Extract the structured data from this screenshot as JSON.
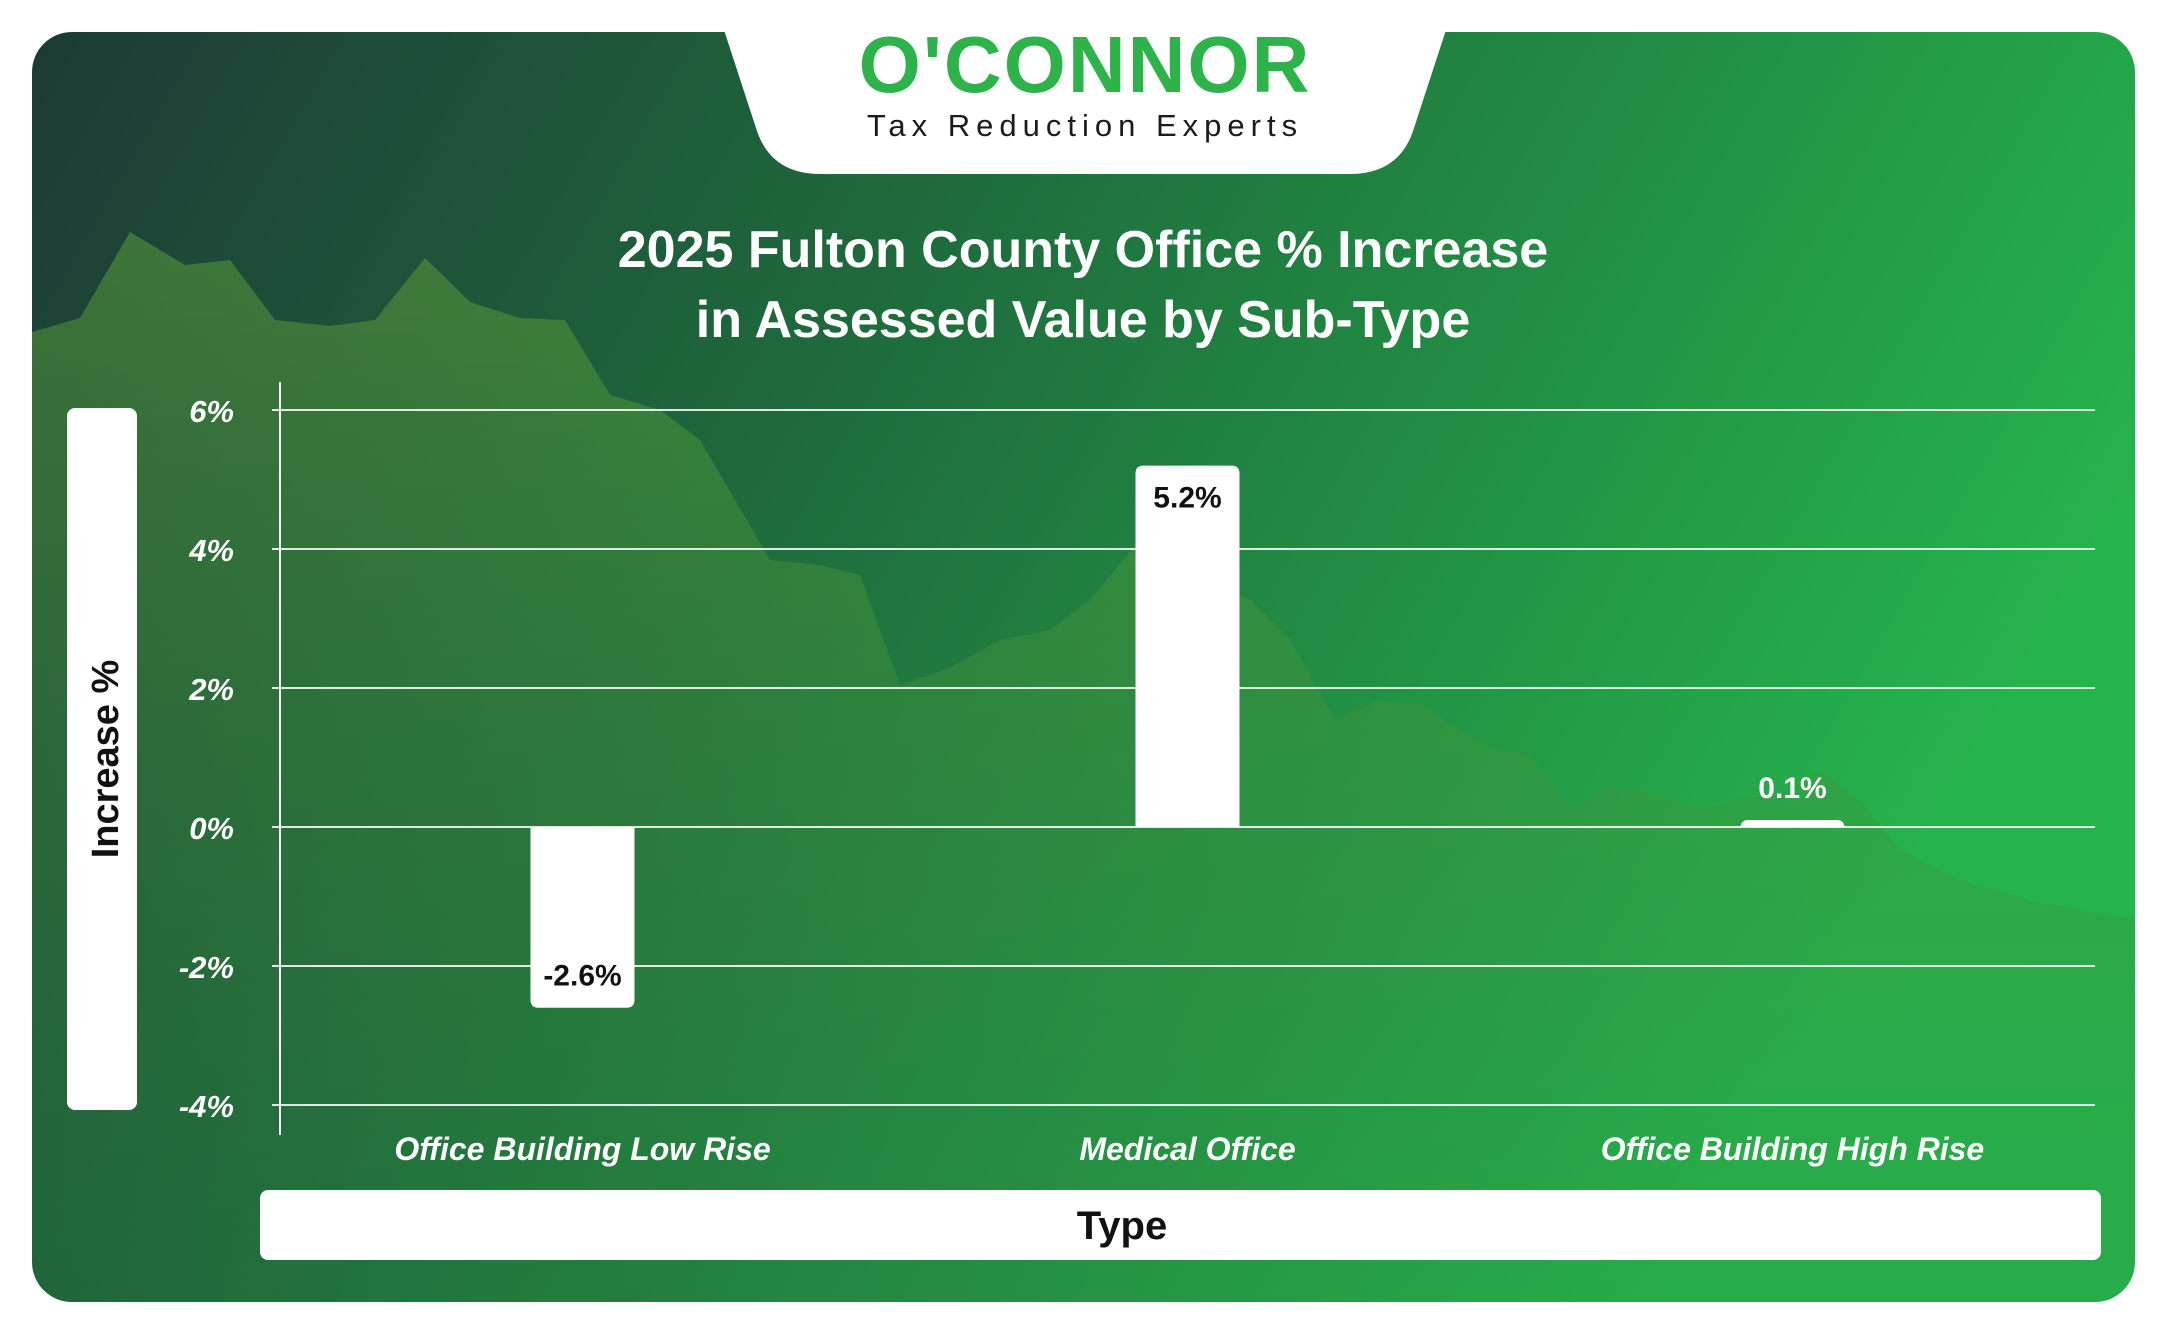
{
  "brand": {
    "name": "O'CONNOR",
    "tagline": "Tax Reduction Experts"
  },
  "colors": {
    "panel_dark": "#1d3b35",
    "panel_mid": "#1f6b3c",
    "panel_light": "#25b24c",
    "logo_green": "#2db34a",
    "bar_fill": "#ffffff",
    "text_light": "#ffffff",
    "text_dark": "#111111"
  },
  "chart_data": {
    "type": "bar",
    "title_lines": [
      "2025 Fulton County Office % Increase",
      "in Assessed Value by Sub-Type"
    ],
    "xlabel": "Type",
    "ylabel": "Increase %",
    "categories": [
      "Office Building Low Rise",
      "Medical Office",
      "Office Building High Rise"
    ],
    "values": [
      -2.6,
      5.2,
      0.1
    ],
    "value_labels": [
      "-2.6%",
      "5.2%",
      "0.1%"
    ],
    "ylim": [
      -4,
      6
    ],
    "yticks": [
      6,
      4,
      2,
      0,
      -2,
      -4
    ],
    "ytick_labels": [
      "6%",
      "4%",
      "2%",
      "0%",
      "-2%",
      "-4%"
    ],
    "grid": true,
    "legend": "none"
  }
}
